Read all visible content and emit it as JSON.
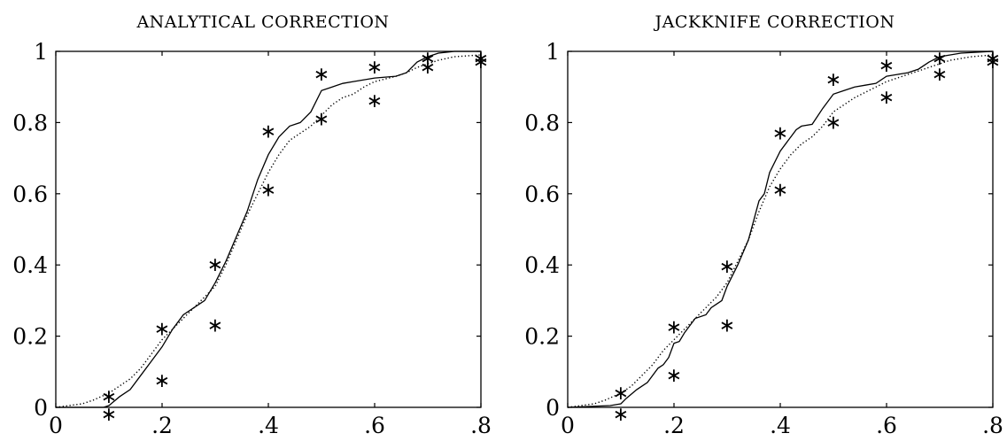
{
  "chart_data": [
    {
      "type": "line",
      "title": "ANALYTICAL CORRECTION",
      "xlim": [
        0,
        0.8
      ],
      "ylim": [
        0,
        1
      ],
      "x_ticks": [
        0,
        0.2,
        0.4,
        0.6,
        0.8
      ],
      "x_tick_labels": [
        "0",
        ".2",
        ".4",
        ".6",
        ".8"
      ],
      "y_ticks": [
        0,
        0.2,
        0.4,
        0.6,
        0.8,
        1
      ],
      "y_tick_labels": [
        "0",
        "0.2",
        "0.4",
        "0.6",
        "0.8",
        "1"
      ],
      "grid": false,
      "series": [
        {
          "style": "solid",
          "x": [
            0,
            0.09,
            0.1,
            0.12,
            0.14,
            0.16,
            0.18,
            0.2,
            0.22,
            0.24,
            0.26,
            0.28,
            0.3,
            0.32,
            0.34,
            0.36,
            0.38,
            0.4,
            0.42,
            0.44,
            0.46,
            0.48,
            0.5,
            0.52,
            0.54,
            0.56,
            0.6,
            0.64,
            0.66,
            0.68,
            0.7,
            0.72,
            0.75,
            0.8
          ],
          "y": [
            0,
            0,
            0.005,
            0.03,
            0.05,
            0.09,
            0.13,
            0.17,
            0.22,
            0.26,
            0.28,
            0.3,
            0.35,
            0.41,
            0.48,
            0.55,
            0.64,
            0.71,
            0.76,
            0.79,
            0.8,
            0.83,
            0.89,
            0.9,
            0.91,
            0.915,
            0.925,
            0.93,
            0.94,
            0.97,
            0.985,
            0.995,
            1.0,
            1.0
          ]
        },
        {
          "style": "dotted",
          "x": [
            0,
            0.05,
            0.07,
            0.1,
            0.12,
            0.14,
            0.16,
            0.18,
            0.2,
            0.22,
            0.24,
            0.26,
            0.28,
            0.3,
            0.32,
            0.34,
            0.36,
            0.38,
            0.4,
            0.42,
            0.44,
            0.46,
            0.48,
            0.5,
            0.52,
            0.54,
            0.56,
            0.58,
            0.6,
            0.64,
            0.66,
            0.68,
            0.7,
            0.72,
            0.75,
            0.8
          ],
          "y": [
            0,
            0.01,
            0.02,
            0.04,
            0.06,
            0.08,
            0.11,
            0.15,
            0.19,
            0.22,
            0.25,
            0.28,
            0.31,
            0.34,
            0.4,
            0.47,
            0.54,
            0.6,
            0.66,
            0.71,
            0.75,
            0.77,
            0.79,
            0.82,
            0.85,
            0.87,
            0.88,
            0.9,
            0.915,
            0.93,
            0.94,
            0.955,
            0.965,
            0.975,
            0.985,
            0.99
          ]
        },
        {
          "style": "star-markers",
          "x": [
            0.1,
            0.1,
            0.2,
            0.2,
            0.3,
            0.3,
            0.4,
            0.4,
            0.5,
            0.5,
            0.6,
            0.6,
            0.7,
            0.7,
            0.8,
            0.8
          ],
          "y": [
            0.05,
            0.0,
            0.24,
            0.095,
            0.42,
            0.25,
            0.795,
            0.63,
            0.955,
            0.83,
            0.975,
            0.88,
            1.0,
            0.975,
            1.0,
            0.99
          ]
        }
      ]
    },
    {
      "type": "line",
      "title": "JACKKNIFE CORRECTION",
      "xlim": [
        0,
        0.8
      ],
      "ylim": [
        0,
        1
      ],
      "x_ticks": [
        0,
        0.2,
        0.4,
        0.6,
        0.8
      ],
      "x_tick_labels": [
        "0",
        ".2",
        ".4",
        ".6",
        ".8"
      ],
      "y_ticks": [
        0,
        0.2,
        0.4,
        0.6,
        0.8,
        1
      ],
      "y_tick_labels": [
        "0",
        "0.2",
        "0.4",
        "0.6",
        "0.8",
        "1"
      ],
      "grid": false,
      "series": [
        {
          "style": "solid",
          "x": [
            0,
            0.08,
            0.1,
            0.11,
            0.13,
            0.15,
            0.17,
            0.18,
            0.19,
            0.2,
            0.21,
            0.22,
            0.24,
            0.26,
            0.27,
            0.28,
            0.29,
            0.3,
            0.32,
            0.34,
            0.36,
            0.37,
            0.38,
            0.4,
            0.42,
            0.43,
            0.44,
            0.46,
            0.48,
            0.5,
            0.52,
            0.54,
            0.56,
            0.58,
            0.6,
            0.62,
            0.64,
            0.66,
            0.68,
            0.7,
            0.72,
            0.74,
            0.8
          ],
          "y": [
            0,
            0.005,
            0.01,
            0.025,
            0.05,
            0.07,
            0.11,
            0.12,
            0.14,
            0.18,
            0.185,
            0.21,
            0.25,
            0.26,
            0.28,
            0.29,
            0.3,
            0.34,
            0.4,
            0.47,
            0.58,
            0.6,
            0.66,
            0.72,
            0.76,
            0.78,
            0.79,
            0.795,
            0.84,
            0.88,
            0.89,
            0.9,
            0.905,
            0.91,
            0.93,
            0.935,
            0.94,
            0.95,
            0.97,
            0.985,
            0.99,
            0.995,
            1.0
          ]
        },
        {
          "style": "dotted",
          "x": [
            0,
            0.05,
            0.07,
            0.1,
            0.12,
            0.14,
            0.16,
            0.18,
            0.2,
            0.22,
            0.24,
            0.26,
            0.28,
            0.3,
            0.32,
            0.34,
            0.36,
            0.38,
            0.4,
            0.42,
            0.44,
            0.46,
            0.48,
            0.5,
            0.52,
            0.54,
            0.56,
            0.58,
            0.6,
            0.62,
            0.64,
            0.66,
            0.68,
            0.7,
            0.72,
            0.74,
            0.76,
            0.8
          ],
          "y": [
            0,
            0.01,
            0.02,
            0.04,
            0.06,
            0.09,
            0.12,
            0.16,
            0.19,
            0.22,
            0.25,
            0.28,
            0.31,
            0.35,
            0.41,
            0.47,
            0.55,
            0.62,
            0.67,
            0.71,
            0.74,
            0.76,
            0.79,
            0.83,
            0.85,
            0.87,
            0.885,
            0.9,
            0.915,
            0.925,
            0.935,
            0.945,
            0.955,
            0.965,
            0.975,
            0.98,
            0.985,
            0.99
          ]
        },
        {
          "style": "star-markers",
          "x": [
            0.1,
            0.1,
            0.2,
            0.2,
            0.3,
            0.3,
            0.4,
            0.4,
            0.5,
            0.5,
            0.6,
            0.6,
            0.7,
            0.7,
            0.8,
            0.8
          ],
          "y": [
            0.06,
            0.0,
            0.245,
            0.11,
            0.415,
            0.25,
            0.79,
            0.63,
            0.94,
            0.82,
            0.98,
            0.89,
            1.0,
            0.955,
            1.0,
            0.99
          ]
        }
      ]
    }
  ]
}
